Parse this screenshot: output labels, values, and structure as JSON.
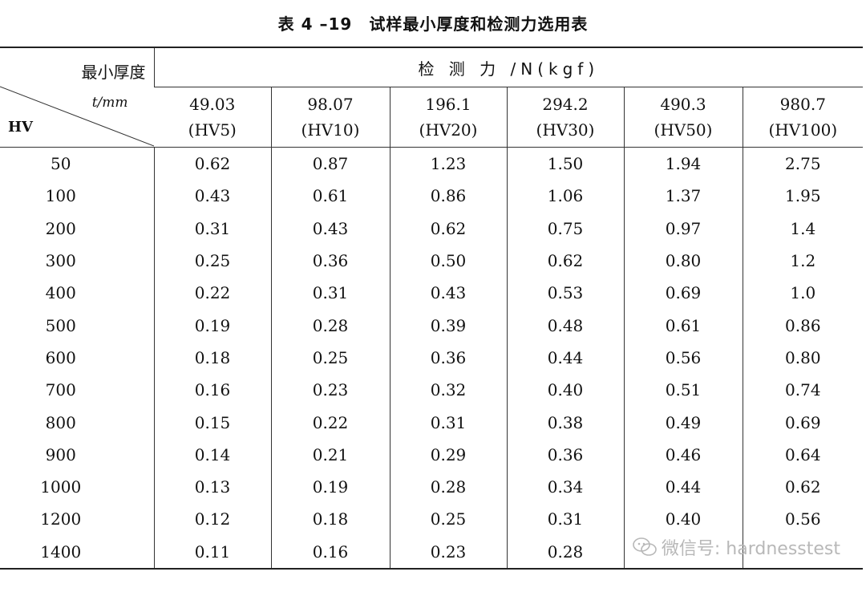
{
  "title": "表 4 –19　试样最小厚度和检测力选用表",
  "header": {
    "min_thickness": "最小厚度",
    "unit": "t/mm",
    "hv": "HV",
    "force_label": "检 测 力 /N(kgf)",
    "forces": [
      {
        "value": "49.03",
        "scale": "(HV5)"
      },
      {
        "value": "98.07",
        "scale": "(HV10)"
      },
      {
        "value": "196.1",
        "scale": "(HV20)"
      },
      {
        "value": "294.2",
        "scale": "(HV30)"
      },
      {
        "value": "490.3",
        "scale": "(HV50)"
      },
      {
        "value": "980.7",
        "scale": "(HV100)"
      }
    ]
  },
  "rows": [
    {
      "hv": "50",
      "v": [
        "0.62",
        "0.87",
        "1.23",
        "1.50",
        "1.94",
        "2.75"
      ]
    },
    {
      "hv": "100",
      "v": [
        "0.43",
        "0.61",
        "0.86",
        "1.06",
        "1.37",
        "1.95"
      ]
    },
    {
      "hv": "200",
      "v": [
        "0.31",
        "0.43",
        "0.62",
        "0.75",
        "0.97",
        "1.4"
      ]
    },
    {
      "hv": "300",
      "v": [
        "0.25",
        "0.36",
        "0.50",
        "0.62",
        "0.80",
        "1.2"
      ]
    },
    {
      "hv": "400",
      "v": [
        "0.22",
        "0.31",
        "0.43",
        "0.53",
        "0.69",
        "1.0"
      ]
    },
    {
      "hv": "500",
      "v": [
        "0.19",
        "0.28",
        "0.39",
        "0.48",
        "0.61",
        "0.86"
      ]
    },
    {
      "hv": "600",
      "v": [
        "0.18",
        "0.25",
        "0.36",
        "0.44",
        "0.56",
        "0.80"
      ]
    },
    {
      "hv": "700",
      "v": [
        "0.16",
        "0.23",
        "0.32",
        "0.40",
        "0.51",
        "0.74"
      ]
    },
    {
      "hv": "800",
      "v": [
        "0.15",
        "0.22",
        "0.31",
        "0.38",
        "0.49",
        "0.69"
      ]
    },
    {
      "hv": "900",
      "v": [
        "0.14",
        "0.21",
        "0.29",
        "0.36",
        "0.46",
        "0.64"
      ]
    },
    {
      "hv": "1000",
      "v": [
        "0.13",
        "0.19",
        "0.28",
        "0.34",
        "0.44",
        "0.62"
      ]
    },
    {
      "hv": "1200",
      "v": [
        "0.12",
        "0.18",
        "0.25",
        "0.31",
        "0.40",
        "0.56"
      ]
    },
    {
      "hv": "1400",
      "v": [
        "0.11",
        "0.16",
        "0.23",
        "0.28",
        "",
        ""
      ]
    }
  ],
  "watermark": {
    "icon": "wechat-icon",
    "text": "微信号: hardnesstest"
  }
}
